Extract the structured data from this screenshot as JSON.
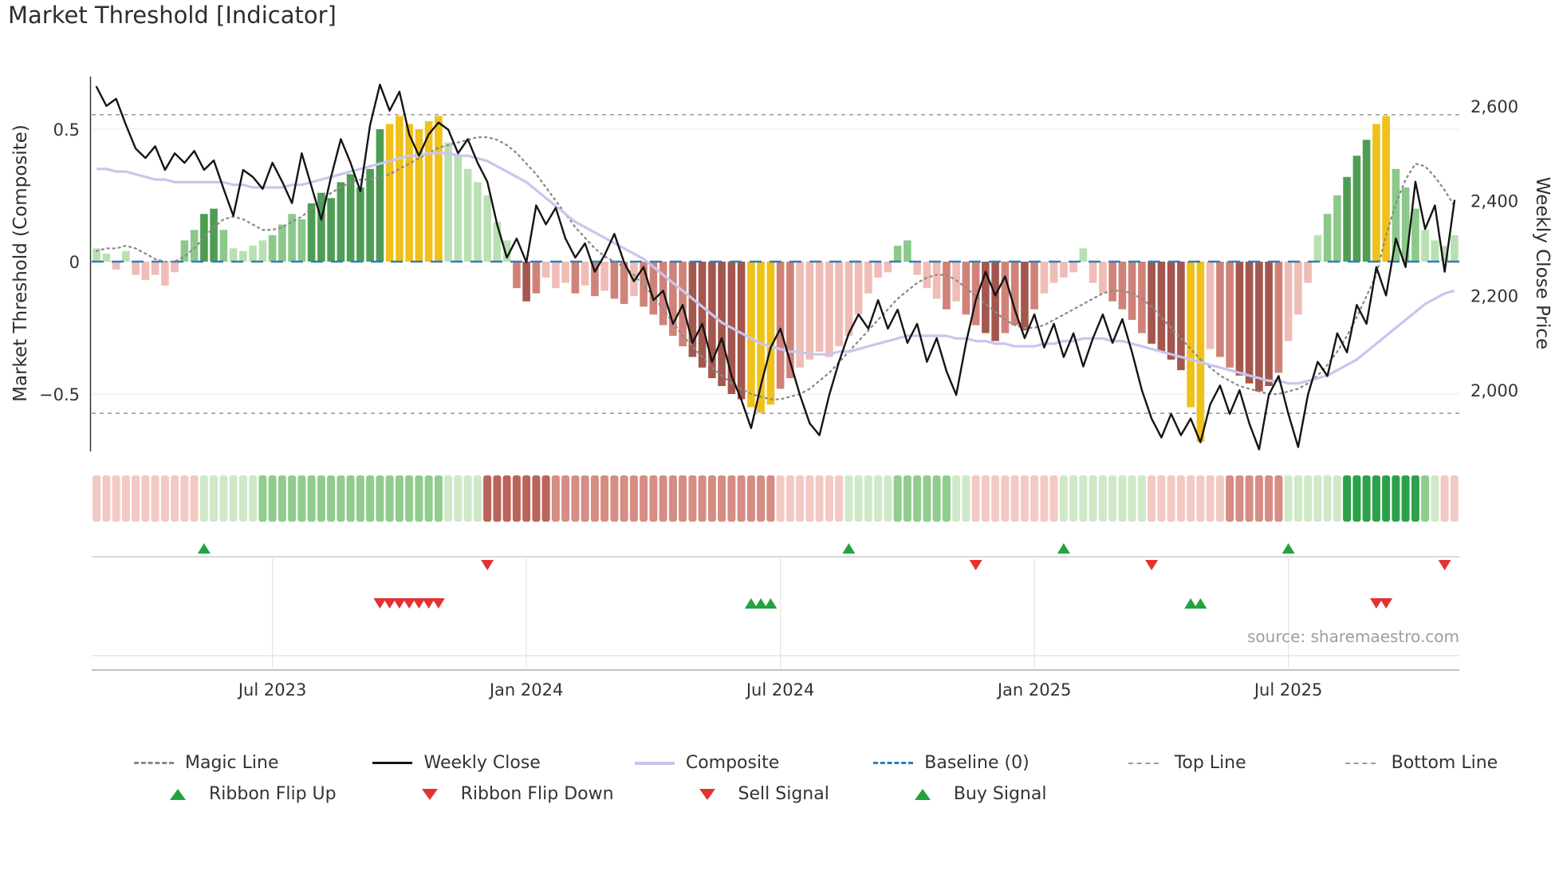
{
  "title": "Market Threshold [Indicator]",
  "source": "source: sharemaestro.com",
  "left_axis": {
    "title": "Market Threshold (Composite)",
    "ticks": [
      "0.5",
      "0",
      "−0.5"
    ],
    "tick_values": [
      0.5,
      0,
      -0.5
    ]
  },
  "right_axis": {
    "title": "Weekly Close Price",
    "ticks": [
      "2,600",
      "2,400",
      "2,200",
      "2,000"
    ],
    "tick_values": [
      2600,
      2400,
      2200,
      2000
    ]
  },
  "x_axis": {
    "tick_labels": [
      "Jul 2023",
      "Jan 2024",
      "Jul 2024",
      "Jan 2025",
      "Jul 2025"
    ],
    "tick_indices": [
      18,
      44,
      70,
      96,
      122
    ]
  },
  "colors": {
    "bar_g1": "#b9e0b2",
    "bar_g2": "#8bc98a",
    "bar_g3": "#4f9d54",
    "bar_r1": "#f0bcb6",
    "bar_r2": "#d08279",
    "bar_r3": "#a4574e",
    "bar_y": "#efc11a",
    "rb_p1": "#f3c9c4",
    "rb_p2": "#d68d84",
    "rb_p3": "#bb645b",
    "rb_g1": "#cfe9c8",
    "rb_g2": "#90cc8e",
    "rb_g3": "#2ba14a",
    "baseline": "#2e7eb8",
    "magic_line": "#8a8a8a",
    "composite_line": "#c9c5ee",
    "weekly_close": "#141414",
    "top_bottom_line": "#9a9a9a",
    "signal_green": "#23a33f",
    "signal_red": "#e23333"
  },
  "legend": {
    "items": [
      {
        "label": "Magic Line"
      },
      {
        "label": "Weekly Close"
      },
      {
        "label": "Composite"
      },
      {
        "label": "Baseline (0)"
      },
      {
        "label": "Top Line"
      },
      {
        "label": "Bottom Line"
      },
      {
        "label": "Ribbon Flip Up"
      },
      {
        "label": "Ribbon Flip Down"
      },
      {
        "label": "Sell Signal"
      },
      {
        "label": "Buy Signal"
      }
    ]
  },
  "chart_data": {
    "type": "bar",
    "subtype": "composite-indicator-with-price-overlay",
    "n_weeks": 140,
    "x_start": "Feb 2023",
    "x_end": "Nov 2025",
    "left_range": [
      -0.75,
      0.65
    ],
    "right_range": [
      1850,
      2700
    ],
    "reference_lines": {
      "baseline": 0,
      "top_line": 0.555,
      "bottom_line": -0.573
    },
    "series": {
      "bars": {
        "name": "Market Threshold Composite (weekly bars)",
        "axis": "left",
        "values": [
          0.05,
          0.03,
          -0.03,
          0.04,
          -0.05,
          -0.07,
          -0.05,
          -0.09,
          -0.04,
          0.08,
          0.12,
          0.18,
          0.2,
          0.12,
          0.05,
          0.04,
          0.06,
          0.08,
          0.1,
          0.14,
          0.18,
          0.16,
          0.22,
          0.26,
          0.24,
          0.3,
          0.33,
          0.28,
          0.35,
          0.5,
          0.52,
          0.55,
          0.52,
          0.5,
          0.53,
          0.55,
          0.45,
          0.4,
          0.35,
          0.3,
          0.25,
          0.15,
          0.08,
          -0.1,
          -0.15,
          -0.12,
          -0.06,
          -0.1,
          -0.08,
          -0.12,
          -0.09,
          -0.13,
          -0.11,
          -0.14,
          -0.16,
          -0.13,
          -0.17,
          -0.2,
          -0.24,
          -0.28,
          -0.32,
          -0.36,
          -0.4,
          -0.44,
          -0.47,
          -0.5,
          -0.52,
          -0.55,
          -0.57,
          -0.54,
          -0.48,
          -0.44,
          -0.4,
          -0.37,
          -0.34,
          -0.36,
          -0.32,
          -0.28,
          -0.2,
          -0.12,
          -0.06,
          -0.04,
          0.06,
          0.08,
          -0.05,
          -0.1,
          -0.14,
          -0.18,
          -0.15,
          -0.2,
          -0.24,
          -0.27,
          -0.3,
          -0.27,
          -0.24,
          -0.26,
          -0.18,
          -0.12,
          -0.08,
          -0.06,
          -0.04,
          0.05,
          -0.08,
          -0.12,
          -0.15,
          -0.18,
          -0.22,
          -0.27,
          -0.31,
          -0.34,
          -0.37,
          -0.41,
          -0.55,
          -0.68,
          -0.33,
          -0.36,
          -0.4,
          -0.43,
          -0.46,
          -0.49,
          -0.47,
          -0.42,
          -0.3,
          -0.2,
          -0.08,
          0.1,
          0.18,
          0.25,
          0.32,
          0.4,
          0.46,
          0.52,
          0.55,
          0.35,
          0.28,
          0.2,
          0.12,
          0.08,
          0.06,
          0.1
        ],
        "colors": [
          "g1",
          "g1",
          "r1",
          "g1",
          "r1",
          "r1",
          "r1",
          "r1",
          "r1",
          "g2",
          "g2",
          "g3",
          "g3",
          "g2",
          "g1",
          "g1",
          "g1",
          "g1",
          "g2",
          "g2",
          "g2",
          "g2",
          "g3",
          "g3",
          "g3",
          "g3",
          "g3",
          "g3",
          "g3",
          "g3",
          "y",
          "y",
          "y",
          "y",
          "y",
          "y",
          "g1",
          "g1",
          "g1",
          "g1",
          "g1",
          "g1",
          "g1",
          "r2",
          "r3",
          "r2",
          "r1",
          "r1",
          "r1",
          "r2",
          "r1",
          "r2",
          "r1",
          "r2",
          "r2",
          "r1",
          "r2",
          "r2",
          "r2",
          "r2",
          "r2",
          "r3",
          "r3",
          "r3",
          "r3",
          "r3",
          "r3",
          "y",
          "y",
          "y",
          "r2",
          "r2",
          "r1",
          "r1",
          "r1",
          "r1",
          "r1",
          "r1",
          "r1",
          "r1",
          "r1",
          "r1",
          "g2",
          "g2",
          "r1",
          "r1",
          "r1",
          "r2",
          "r1",
          "r2",
          "r2",
          "r3",
          "r3",
          "r2",
          "r2",
          "r3",
          "r2",
          "r1",
          "r1",
          "r1",
          "r1",
          "g1",
          "r1",
          "r1",
          "r2",
          "r2",
          "r2",
          "r2",
          "r3",
          "r3",
          "r3",
          "r3",
          "y",
          "y",
          "r1",
          "r2",
          "r2",
          "r3",
          "r3",
          "r3",
          "r3",
          "r2",
          "r1",
          "r1",
          "r1",
          "g1",
          "g2",
          "g2",
          "g3",
          "g3",
          "g3",
          "y",
          "y",
          "g2",
          "g2",
          "g2",
          "g1",
          "g1",
          "g1",
          "g1"
        ]
      },
      "weekly_close": {
        "name": "Weekly Close",
        "axis": "right",
        "values": [
          2640,
          2600,
          2615,
          2560,
          2510,
          2490,
          2515,
          2465,
          2500,
          2480,
          2505,
          2465,
          2485,
          2425,
          2368,
          2465,
          2450,
          2425,
          2480,
          2440,
          2395,
          2500,
          2430,
          2360,
          2450,
          2530,
          2480,
          2420,
          2560,
          2645,
          2590,
          2630,
          2540,
          2495,
          2540,
          2565,
          2550,
          2500,
          2530,
          2480,
          2440,
          2350,
          2280,
          2320,
          2270,
          2390,
          2350,
          2385,
          2320,
          2280,
          2310,
          2250,
          2285,
          2330,
          2270,
          2230,
          2260,
          2190,
          2210,
          2140,
          2180,
          2100,
          2140,
          2060,
          2110,
          2030,
          1980,
          1920,
          2010,
          2090,
          2130,
          2060,
          1990,
          1930,
          1905,
          1990,
          2060,
          2120,
          2160,
          2130,
          2190,
          2130,
          2170,
          2100,
          2140,
          2060,
          2110,
          2040,
          1990,
          2100,
          2190,
          2250,
          2200,
          2240,
          2170,
          2110,
          2160,
          2090,
          2140,
          2070,
          2120,
          2050,
          2110,
          2160,
          2100,
          2150,
          2080,
          2000,
          1940,
          1900,
          1950,
          1905,
          1940,
          1890,
          1970,
          2010,
          1950,
          2000,
          1930,
          1875,
          1990,
          2030,
          1950,
          1880,
          1990,
          2060,
          2030,
          2120,
          2080,
          2180,
          2140,
          2260,
          2200,
          2320,
          2260,
          2440,
          2340,
          2390,
          2250,
          2400
        ]
      },
      "composite_line": {
        "name": "Composite",
        "axis": "left",
        "values": [
          0.35,
          0.35,
          0.34,
          0.34,
          0.33,
          0.32,
          0.31,
          0.31,
          0.3,
          0.3,
          0.3,
          0.3,
          0.3,
          0.3,
          0.29,
          0.29,
          0.28,
          0.28,
          0.28,
          0.28,
          0.29,
          0.29,
          0.3,
          0.31,
          0.32,
          0.33,
          0.34,
          0.35,
          0.36,
          0.37,
          0.38,
          0.39,
          0.4,
          0.4,
          0.41,
          0.41,
          0.41,
          0.4,
          0.4,
          0.39,
          0.38,
          0.36,
          0.34,
          0.32,
          0.3,
          0.27,
          0.24,
          0.21,
          0.18,
          0.15,
          0.13,
          0.11,
          0.09,
          0.07,
          0.05,
          0.03,
          0.01,
          -0.02,
          -0.05,
          -0.08,
          -0.11,
          -0.14,
          -0.17,
          -0.2,
          -0.23,
          -0.25,
          -0.27,
          -0.29,
          -0.31,
          -0.32,
          -0.33,
          -0.34,
          -0.34,
          -0.35,
          -0.35,
          -0.35,
          -0.34,
          -0.34,
          -0.33,
          -0.32,
          -0.31,
          -0.3,
          -0.29,
          -0.28,
          -0.28,
          -0.28,
          -0.28,
          -0.28,
          -0.29,
          -0.29,
          -0.3,
          -0.3,
          -0.31,
          -0.31,
          -0.32,
          -0.32,
          -0.32,
          -0.31,
          -0.31,
          -0.3,
          -0.3,
          -0.29,
          -0.29,
          -0.29,
          -0.3,
          -0.3,
          -0.31,
          -0.32,
          -0.33,
          -0.34,
          -0.35,
          -0.36,
          -0.37,
          -0.38,
          -0.39,
          -0.4,
          -0.41,
          -0.42,
          -0.43,
          -0.44,
          -0.45,
          -0.45,
          -0.46,
          -0.46,
          -0.45,
          -0.44,
          -0.43,
          -0.41,
          -0.39,
          -0.37,
          -0.34,
          -0.31,
          -0.28,
          -0.25,
          -0.22,
          -0.19,
          -0.16,
          -0.14,
          -0.12,
          -0.11
        ]
      },
      "magic_line": {
        "name": "Magic Line",
        "axis": "left",
        "values": [
          0.04,
          0.05,
          0.05,
          0.06,
          0.05,
          0.03,
          0.01,
          0.0,
          0.0,
          0.02,
          0.05,
          0.09,
          0.13,
          0.16,
          0.17,
          0.16,
          0.14,
          0.12,
          0.12,
          0.13,
          0.15,
          0.17,
          0.2,
          0.23,
          0.26,
          0.28,
          0.3,
          0.31,
          0.31,
          0.32,
          0.33,
          0.35,
          0.37,
          0.39,
          0.41,
          0.43,
          0.44,
          0.45,
          0.46,
          0.47,
          0.47,
          0.46,
          0.44,
          0.41,
          0.37,
          0.33,
          0.28,
          0.23,
          0.18,
          0.13,
          0.09,
          0.05,
          0.02,
          0.0,
          -0.02,
          -0.05,
          -0.09,
          -0.13,
          -0.18,
          -0.23,
          -0.28,
          -0.32,
          -0.36,
          -0.4,
          -0.43,
          -0.46,
          -0.48,
          -0.5,
          -0.51,
          -0.52,
          -0.52,
          -0.51,
          -0.5,
          -0.48,
          -0.45,
          -0.42,
          -0.38,
          -0.34,
          -0.3,
          -0.26,
          -0.22,
          -0.18,
          -0.14,
          -0.11,
          -0.08,
          -0.06,
          -0.05,
          -0.05,
          -0.07,
          -0.1,
          -0.13,
          -0.16,
          -0.19,
          -0.22,
          -0.24,
          -0.25,
          -0.25,
          -0.24,
          -0.22,
          -0.2,
          -0.18,
          -0.16,
          -0.14,
          -0.12,
          -0.11,
          -0.11,
          -0.12,
          -0.14,
          -0.17,
          -0.21,
          -0.25,
          -0.29,
          -0.33,
          -0.37,
          -0.4,
          -0.43,
          -0.45,
          -0.47,
          -0.48,
          -0.49,
          -0.5,
          -0.5,
          -0.49,
          -0.48,
          -0.46,
          -0.43,
          -0.39,
          -0.34,
          -0.28,
          -0.21,
          -0.13,
          -0.05,
          0.1,
          0.22,
          0.31,
          0.37,
          0.36,
          0.32,
          0.27,
          0.21
        ]
      }
    },
    "ribbon": [
      "p1",
      "p1",
      "p1",
      "p1",
      "p1",
      "p1",
      "p1",
      "p1",
      "p1",
      "p1",
      "p1",
      "g1",
      "g1",
      "g1",
      "g1",
      "g1",
      "g1",
      "g2",
      "g2",
      "g2",
      "g2",
      "g2",
      "g2",
      "g2",
      "g2",
      "g2",
      "g2",
      "g2",
      "g2",
      "g2",
      "g2",
      "g2",
      "g2",
      "g2",
      "g2",
      "g2",
      "g1",
      "g1",
      "g1",
      "g1",
      "p3",
      "p3",
      "p3",
      "p3",
      "p3",
      "p3",
      "p3",
      "p2",
      "p2",
      "p2",
      "p2",
      "p2",
      "p2",
      "p2",
      "p2",
      "p2",
      "p2",
      "p2",
      "p2",
      "p2",
      "p2",
      "p2",
      "p2",
      "p2",
      "p2",
      "p2",
      "p2",
      "p2",
      "p2",
      "p2",
      "p1",
      "p1",
      "p1",
      "p1",
      "p1",
      "p1",
      "p1",
      "g1",
      "g1",
      "g1",
      "g1",
      "g1",
      "g2",
      "g2",
      "g2",
      "g2",
      "g2",
      "g2",
      "g1",
      "g1",
      "p1",
      "p1",
      "p1",
      "p1",
      "p1",
      "p1",
      "p1",
      "p1",
      "p1",
      "g1",
      "g1",
      "g1",
      "g1",
      "g1",
      "g1",
      "g1",
      "g1",
      "g1",
      "p1",
      "p1",
      "p1",
      "p1",
      "p1",
      "p1",
      "p1",
      "p1",
      "p2",
      "p2",
      "p2",
      "p2",
      "p2",
      "p2",
      "g1",
      "g1",
      "g1",
      "g1",
      "g1",
      "g1",
      "g3",
      "g3",
      "g3",
      "g3",
      "g3",
      "g3",
      "g3",
      "g3",
      "g2",
      "g1",
      "p1",
      "p1"
    ],
    "signals": {
      "ribbon_flip_up": [
        11,
        77,
        99,
        122
      ],
      "ribbon_flip_down": [
        40,
        90,
        108,
        138
      ],
      "sell": [
        29,
        30,
        31,
        32,
        33,
        34,
        35,
        131,
        132
      ],
      "buy": [
        67,
        68,
        69,
        112,
        113
      ]
    }
  }
}
